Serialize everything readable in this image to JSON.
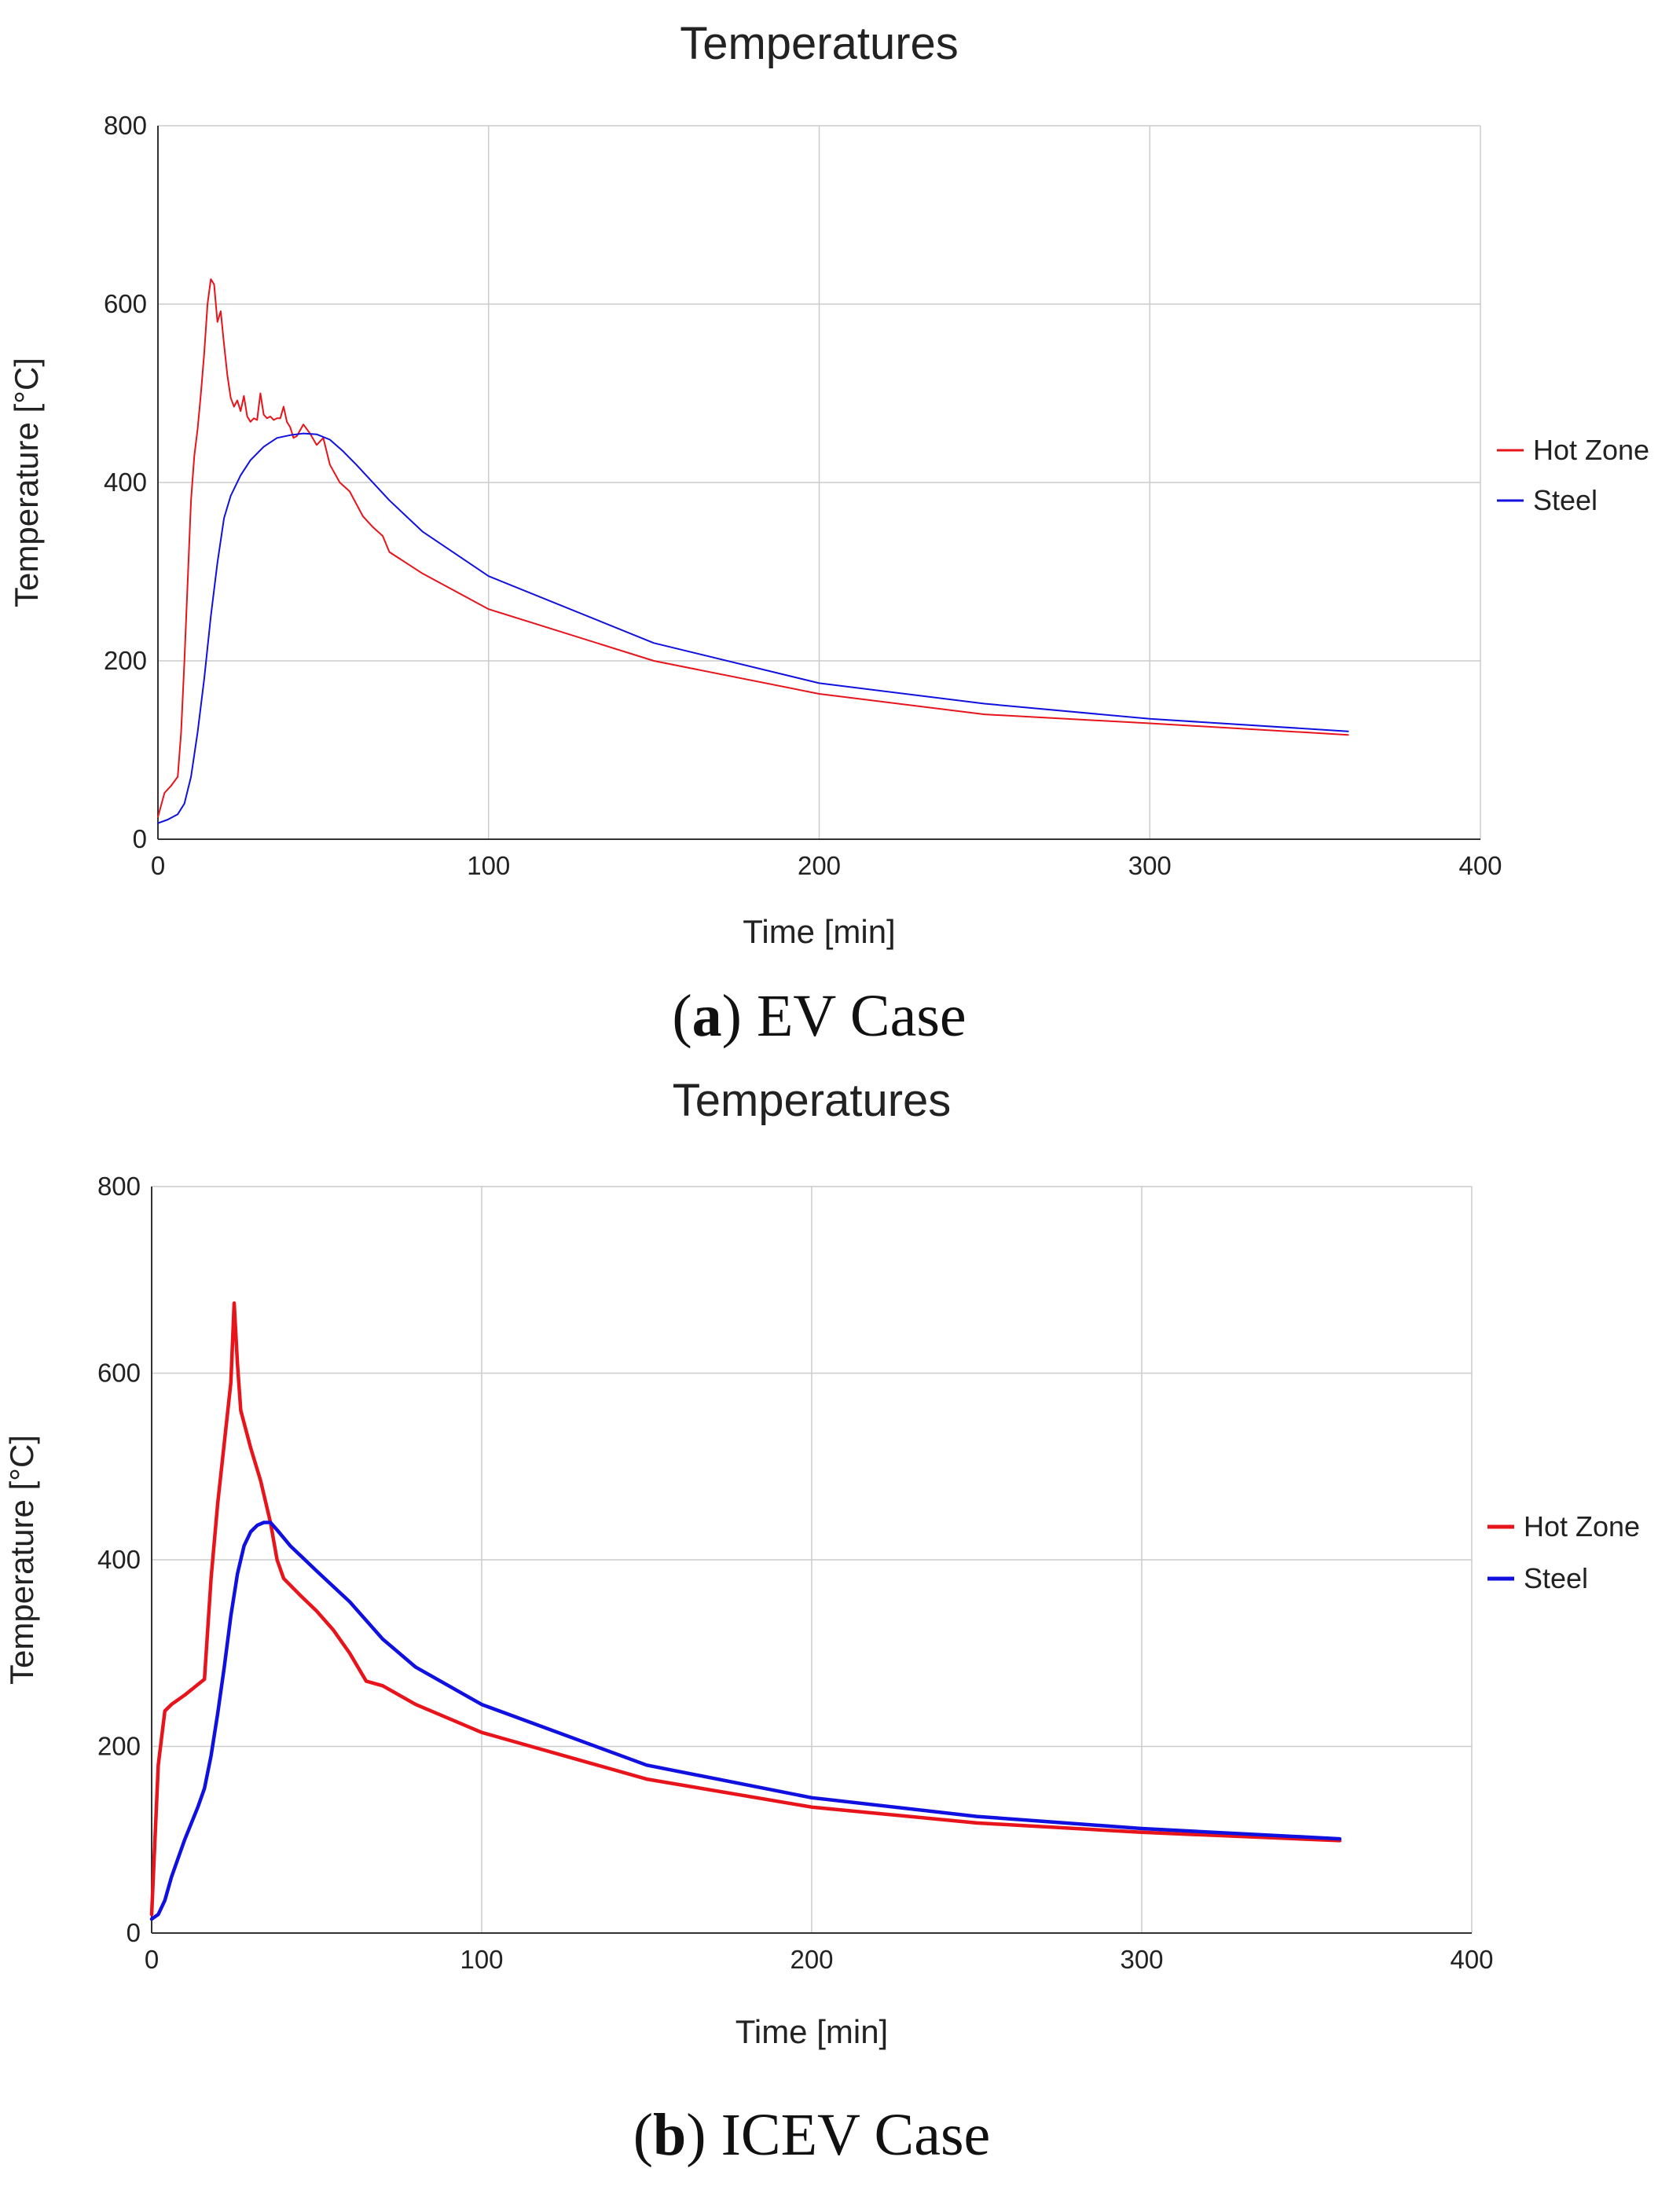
{
  "chart_data": [
    {
      "type": "line",
      "title": "Temperatures",
      "xlabel": "Time [min]",
      "ylabel": "Temperature [°C]",
      "xlim": [
        0,
        400
      ],
      "ylim": [
        0,
        800
      ],
      "xticks": [
        "0",
        "100",
        "200",
        "300",
        "400"
      ],
      "yticks": [
        "0",
        "200",
        "400",
        "600",
        "800"
      ],
      "grid": true,
      "legend_position": "right",
      "caption": {
        "paren_open": "(",
        "letter": "a",
        "rest": ") EV Case"
      },
      "series": [
        {
          "name": "Hot Zone",
          "color": "#e8141b",
          "x": [
            0,
            2,
            4,
            6,
            7,
            8,
            9,
            10,
            11,
            12,
            13,
            14,
            15,
            16,
            17,
            18,
            19,
            20,
            21,
            22,
            23,
            24,
            25,
            26,
            27,
            28,
            29,
            30,
            31,
            32,
            33,
            34,
            35,
            36,
            37,
            38,
            39,
            40,
            41,
            42,
            44,
            46,
            48,
            50,
            52,
            55,
            58,
            62,
            65,
            68,
            70,
            80,
            100,
            150,
            200,
            250,
            300,
            360
          ],
          "y": [
            25,
            52,
            60,
            70,
            120,
            200,
            290,
            380,
            430,
            460,
            500,
            545,
            600,
            628,
            622,
            580,
            592,
            555,
            520,
            495,
            485,
            492,
            480,
            497,
            474,
            468,
            472,
            470,
            500,
            476,
            472,
            474,
            470,
            472,
            472,
            485,
            468,
            462,
            450,
            452,
            465,
            455,
            442,
            450,
            420,
            400,
            390,
            362,
            350,
            340,
            322,
            298,
            258,
            200,
            163,
            140,
            130,
            117
          ]
        },
        {
          "name": "Steel",
          "color": "#1010e0",
          "x": [
            0,
            3,
            6,
            8,
            10,
            12,
            14,
            16,
            18,
            20,
            22,
            25,
            28,
            32,
            36,
            40,
            44,
            48,
            52,
            56,
            60,
            70,
            80,
            100,
            150,
            200,
            250,
            300,
            360
          ],
          "y": [
            18,
            22,
            28,
            40,
            70,
            120,
            180,
            250,
            310,
            360,
            385,
            408,
            425,
            440,
            450,
            453,
            455,
            454,
            448,
            435,
            420,
            380,
            345,
            295,
            220,
            175,
            152,
            135,
            121
          ]
        }
      ]
    },
    {
      "type": "line",
      "title": "Temperatures",
      "xlabel": "Time [min]",
      "ylabel": "Temperature [°C]",
      "xlim": [
        0,
        400
      ],
      "ylim": [
        0,
        800
      ],
      "xticks": [
        "0",
        "100",
        "200",
        "300",
        "400"
      ],
      "yticks": [
        "0",
        "200",
        "400",
        "600",
        "800"
      ],
      "grid": true,
      "legend_position": "right",
      "caption": {
        "paren_open": "(",
        "letter": "b",
        "rest": ") ICEV Case"
      },
      "series": [
        {
          "name": "Hot Zone",
          "color": "#e8141b",
          "x": [
            0,
            2,
            4,
            6,
            10,
            16,
            18,
            20,
            22,
            24,
            25,
            26,
            27,
            30,
            33,
            36,
            38,
            40,
            45,
            50,
            55,
            60,
            65,
            70,
            80,
            100,
            150,
            200,
            250,
            300,
            360
          ],
          "y": [
            20,
            180,
            238,
            245,
            255,
            272,
            380,
            460,
            525,
            590,
            675,
            610,
            560,
            520,
            485,
            440,
            400,
            380,
            362,
            345,
            325,
            300,
            270,
            265,
            245,
            215,
            165,
            135,
            118,
            108,
            99
          ]
        },
        {
          "name": "Steel",
          "color": "#1010e0",
          "x": [
            0,
            2,
            4,
            6,
            10,
            14,
            16,
            18,
            20,
            22,
            24,
            26,
            28,
            30,
            32,
            34,
            36,
            38,
            42,
            50,
            60,
            70,
            80,
            100,
            150,
            200,
            250,
            300,
            360
          ],
          "y": [
            15,
            20,
            35,
            60,
            100,
            135,
            155,
            190,
            235,
            285,
            340,
            385,
            415,
            430,
            437,
            440,
            440,
            432,
            415,
            388,
            355,
            315,
            285,
            245,
            180,
            145,
            125,
            112,
            101
          ]
        }
      ]
    }
  ]
}
